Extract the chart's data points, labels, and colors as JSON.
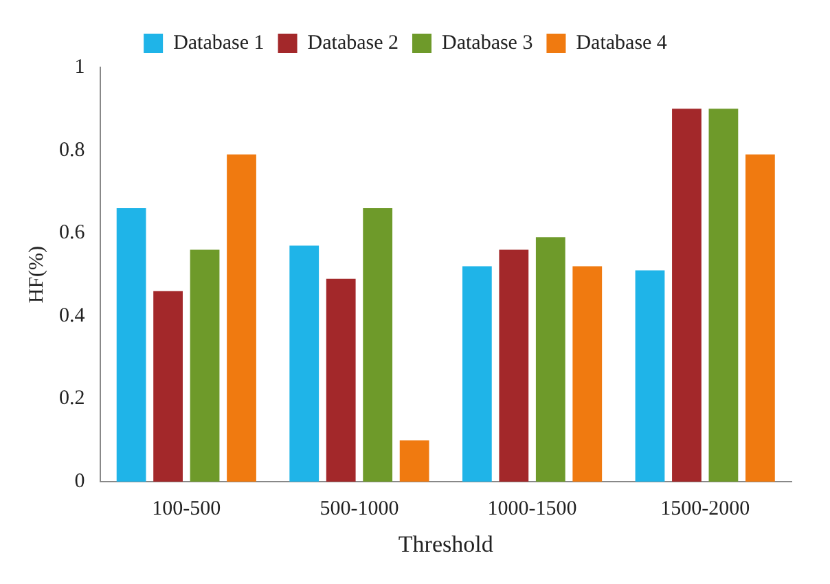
{
  "chart_data": {
    "type": "bar",
    "xlabel": "Threshold",
    "ylabel": "HF(%)",
    "categories": [
      "100-500",
      "500-1000",
      "1000-1500",
      "1500-2000"
    ],
    "series": [
      {
        "name": "Database 1",
        "color": "#1fb4e8",
        "values": [
          0.66,
          0.57,
          0.52,
          0.51
        ]
      },
      {
        "name": "Database 2",
        "color": "#a3282a",
        "values": [
          0.46,
          0.49,
          0.56,
          0.9
        ]
      },
      {
        "name": "Database 3",
        "color": "#6e9a2a",
        "values": [
          0.56,
          0.66,
          0.59,
          0.9
        ]
      },
      {
        "name": "Database 4",
        "color": "#f07a10",
        "values": [
          0.79,
          0.1,
          0.52,
          0.79
        ]
      }
    ],
    "ylim": [
      0,
      1
    ],
    "yticks": [
      0,
      0.2,
      0.4,
      0.6,
      0.8,
      1
    ],
    "grid": false,
    "legend": "top"
  }
}
